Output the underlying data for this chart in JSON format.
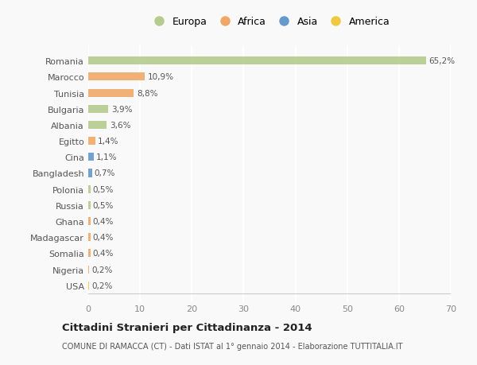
{
  "countries": [
    "Romania",
    "Marocco",
    "Tunisia",
    "Bulgaria",
    "Albania",
    "Egitto",
    "Cina",
    "Bangladesh",
    "Polonia",
    "Russia",
    "Ghana",
    "Madagascar",
    "Somalia",
    "Nigeria",
    "USA"
  ],
  "values": [
    65.2,
    10.9,
    8.8,
    3.9,
    3.6,
    1.4,
    1.1,
    0.7,
    0.5,
    0.5,
    0.4,
    0.4,
    0.4,
    0.2,
    0.2
  ],
  "labels": [
    "65,2%",
    "10,9%",
    "8,8%",
    "3,9%",
    "3,6%",
    "1,4%",
    "1,1%",
    "0,7%",
    "0,5%",
    "0,5%",
    "0,4%",
    "0,4%",
    "0,4%",
    "0,2%",
    "0,2%"
  ],
  "colors": [
    "#b5cc8e",
    "#f0a868",
    "#f0a868",
    "#b5cc8e",
    "#b5cc8e",
    "#f0a868",
    "#6699cc",
    "#6699cc",
    "#b5cc8e",
    "#b5cc8e",
    "#f0a868",
    "#f0a868",
    "#f0a868",
    "#f0a868",
    "#f0c842"
  ],
  "legend_labels": [
    "Europa",
    "Africa",
    "Asia",
    "America"
  ],
  "legend_colors": [
    "#b5cc8e",
    "#f0a868",
    "#6699cc",
    "#f0c842"
  ],
  "xlim": [
    0,
    70
  ],
  "xticks": [
    0,
    10,
    20,
    30,
    40,
    50,
    60,
    70
  ],
  "title": "Cittadini Stranieri per Cittadinanza - 2014",
  "subtitle": "COMUNE DI RAMACCA (CT) - Dati ISTAT al 1° gennaio 2014 - Elaborazione TUTTITALIA.IT",
  "bg_color": "#f9f9f9",
  "grid_color": "#ffffff",
  "bar_height": 0.5
}
